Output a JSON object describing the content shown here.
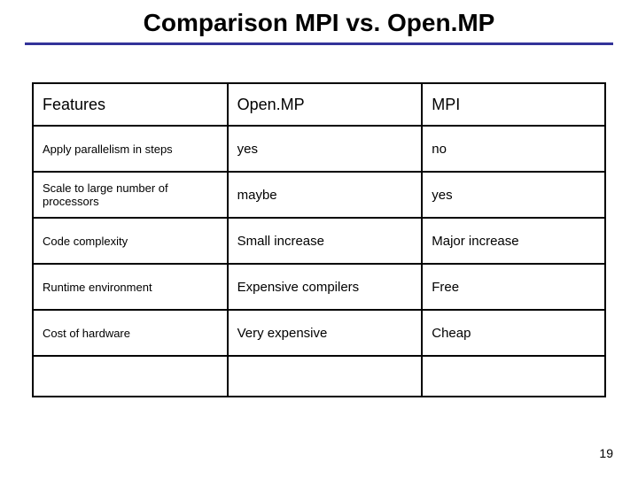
{
  "title": "Comparison MPI vs. Open.MP",
  "page_number": "19",
  "table": {
    "columns": [
      "Features",
      "Open.MP",
      "MPI"
    ],
    "column_widths_pct": [
      34,
      34,
      32
    ],
    "rows": [
      {
        "feature": "Apply parallelism in steps",
        "openmp": "yes",
        "mpi": " no"
      },
      {
        "feature": "Scale to large number of processors",
        "openmp": "maybe",
        "mpi": "yes"
      },
      {
        "feature": "Code complexity",
        "openmp": "Small increase",
        "mpi": "Major increase"
      },
      {
        "feature": "Runtime environment",
        "openmp": "Expensive compilers",
        "mpi": "Free"
      },
      {
        "feature": "Cost of hardware",
        "openmp": "Very expensive",
        "mpi": "Cheap"
      }
    ],
    "trailing_empty_row": true,
    "header_fontsize": 18,
    "feature_fontsize": 13,
    "value_fontsize": 15,
    "border_color": "#000000",
    "background_color": "#ffffff"
  },
  "accent_color": "#333399",
  "title_fontsize": 28
}
